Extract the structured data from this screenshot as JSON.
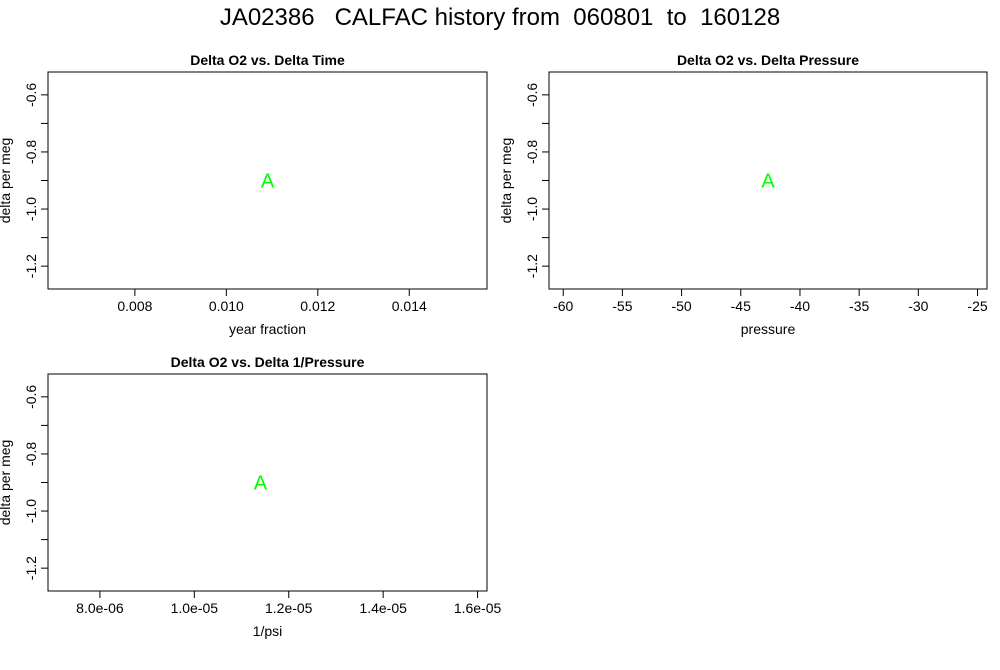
{
  "page_title": "JA02386   CALFAC history from  060801  to  160128",
  "chart_data": [
    {
      "type": "scatter",
      "title": "Delta O2 vs. Delta Time",
      "xlabel": "year fraction",
      "ylabel": "delta per meg",
      "xlim": [
        0.0061,
        0.0157
      ],
      "ylim": [
        -1.28,
        -0.52
      ],
      "x_ticks": [
        0.008,
        0.01,
        0.012,
        0.014
      ],
      "x_tick_labels": [
        "0.008",
        "0.010",
        "0.012",
        "0.014"
      ],
      "y_ticks": [
        -1.2,
        -1.0,
        -0.8,
        -0.6
      ],
      "y_tick_labels": [
        "-1.2",
        "-1.0",
        "-0.8",
        "-0.6"
      ],
      "y_minor_ticks": [
        -1.1,
        -0.9,
        -0.7
      ],
      "points": [
        {
          "x": 0.0109,
          "y": -0.9,
          "label": "A"
        }
      ],
      "point_color": "#00ff00"
    },
    {
      "type": "scatter",
      "title": "Delta O2 vs. Delta Pressure",
      "xlabel": "pressure",
      "ylabel": "delta per meg",
      "xlim": [
        -61.2,
        -24.2
      ],
      "ylim": [
        -1.28,
        -0.52
      ],
      "x_ticks": [
        -60,
        -55,
        -50,
        -45,
        -40,
        -35,
        -30,
        -25
      ],
      "x_tick_labels": [
        "-60",
        "-55",
        "-50",
        "-45",
        "-40",
        "-35",
        "-30",
        "-25"
      ],
      "y_ticks": [
        -1.2,
        -1.0,
        -0.8,
        -0.6
      ],
      "y_tick_labels": [
        "-1.2",
        "-1.0",
        "-0.8",
        "-0.6"
      ],
      "y_minor_ticks": [
        -1.1,
        -0.9,
        -0.7
      ],
      "points": [
        {
          "x": -42.7,
          "y": -0.9,
          "label": "A"
        }
      ],
      "point_color": "#00ff00"
    },
    {
      "type": "scatter",
      "title": "Delta O2 vs. Delta 1/Pressure",
      "xlabel": "1/psi",
      "ylabel": "delta per meg",
      "xlim": [
        6.9e-06,
        1.62e-05
      ],
      "ylim": [
        -1.28,
        -0.52
      ],
      "x_ticks": [
        8e-06,
        1e-05,
        1.2e-05,
        1.4e-05,
        1.6e-05
      ],
      "x_tick_labels": [
        "8.0e-06",
        "1.0e-05",
        "1.2e-05",
        "1.4e-05",
        "1.6e-05"
      ],
      "y_ticks": [
        -1.2,
        -1.0,
        -0.8,
        -0.6
      ],
      "y_tick_labels": [
        "-1.2",
        "-1.0",
        "-0.8",
        "-0.6"
      ],
      "y_minor_ticks": [
        -1.1,
        -0.9,
        -0.7
      ],
      "points": [
        {
          "x": 1.14e-05,
          "y": -0.9,
          "label": "A"
        }
      ],
      "point_color": "#00ff00"
    }
  ]
}
